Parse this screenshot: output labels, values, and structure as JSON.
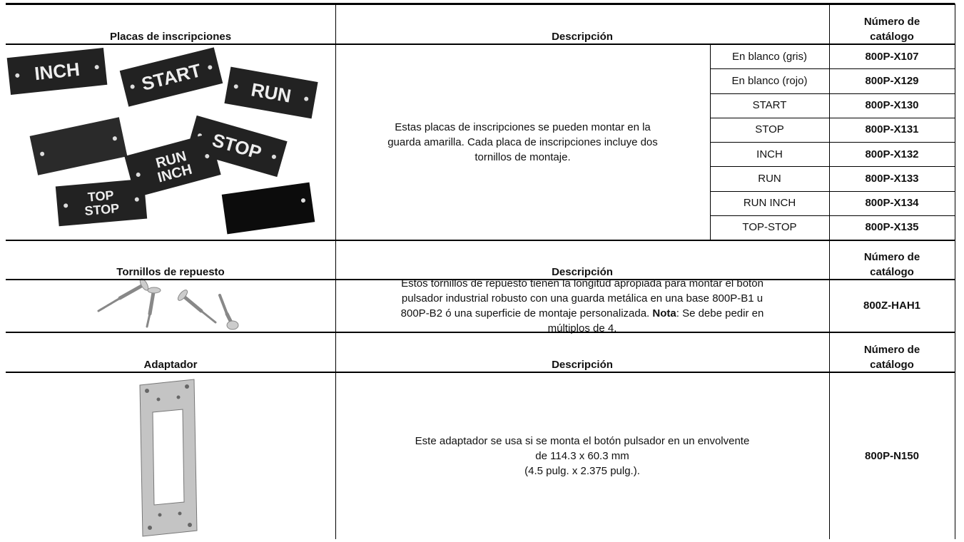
{
  "sections": [
    {
      "header": {
        "product": "Placas de inscripciones",
        "description": "Descripción",
        "catalog": [
          "Número de",
          "catálogo"
        ]
      },
      "description": [
        "Estas placas de inscripciones se pueden montar en la",
        "guarda amarilla. Cada placa de inscripciones incluye dos",
        "tornillos de montaje."
      ],
      "image_labels": [
        "INCH",
        "START",
        "RUN",
        "STOP",
        "RUN",
        "INCH",
        "TOP",
        "STOP"
      ],
      "rows": [
        [
          "En blanco (gris)",
          "800P-X107"
        ],
        [
          "En blanco (rojo)",
          "800P-X129"
        ],
        [
          "START",
          "800P-X130"
        ],
        [
          "STOP",
          "800P-X131"
        ],
        [
          "INCH",
          "800P-X132"
        ],
        [
          "RUN",
          "800P-X133"
        ],
        [
          "RUN INCH",
          "800P-X134"
        ],
        [
          "TOP-STOP",
          "800P-X135"
        ]
      ]
    },
    {
      "header": {
        "product": "Tornillos de repuesto",
        "description": "Descripción",
        "catalog": [
          "Número de",
          "catálogo"
        ]
      },
      "description": [
        "Estos tornillos de repuesto tienen la longitud apropiada para montar el botón",
        "pulsador industrial robusto con una guarda metálica en una base 800P-B1 u",
        "800P-B2 ó una superficie de montaje personalizada.",
        "Nota",
        ": Se debe pedir en",
        "múltiplos de 4."
      ],
      "catalog": "800Z-HAH1"
    },
    {
      "header": {
        "product": "Adaptador",
        "description": "Descripción",
        "catalog": [
          "Número de",
          "catálogo"
        ]
      },
      "description": [
        "Este adaptador se usa si se monta el botón pulsador en un envolvente",
        "de 114.3 x 60.3 mm",
        "(4.5 pulg. x 2.375 pulg.)."
      ],
      "catalog": "800P-N150"
    }
  ]
}
